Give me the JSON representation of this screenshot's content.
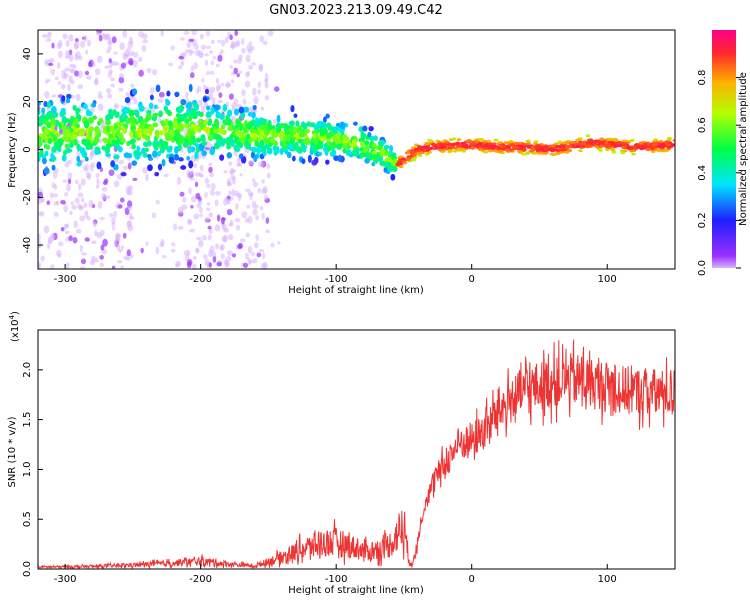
{
  "title": "GN03.2023.213.09.49.C42",
  "chart_data": [
    {
      "type": "heatmap",
      "xlabel": "Height of straight line (km)",
      "ylabel": "Frequency (Hz)",
      "xlim": [
        -320,
        150
      ],
      "ylim": [
        -50,
        50
      ],
      "xticks": [
        -300,
        -200,
        -100,
        0,
        100
      ],
      "yticks": [
        -40,
        -20,
        0,
        20,
        40
      ],
      "ridge": {
        "x": [
          -290,
          -250,
          -200,
          -150,
          -110,
          -80,
          -65,
          -55,
          -50,
          -40,
          -30,
          -10,
          0,
          20,
          40,
          60,
          90,
          120,
          150
        ],
        "freq": [
          7,
          8,
          9,
          6,
          5,
          2,
          -2,
          -7,
          -4,
          0,
          1,
          2,
          2,
          1,
          1,
          0,
          3,
          1,
          2
        ]
      },
      "colorbar": {
        "label": "Normalized spectral amplitude",
        "ticks": [
          "0.0",
          "0.2",
          "0.4",
          "0.6",
          "0.8"
        ],
        "range": [
          0,
          1
        ]
      }
    },
    {
      "type": "line",
      "xlabel": "Height of straight line (km)",
      "ylabel": "SNR (10 * v/v)",
      "multiplier": "(x10",
      "multiplier_exp": "4",
      "multiplier_close": ")",
      "xlim": [
        -320,
        150
      ],
      "ylim": [
        0,
        24000
      ],
      "xticks": [
        -300,
        -200,
        -100,
        0,
        100
      ],
      "yticks": [
        "0.0",
        "0.5",
        "1.0",
        "1.5",
        "2.0"
      ],
      "ytick_values": [
        0,
        5000,
        10000,
        15000,
        20000
      ],
      "color": "#ee3333",
      "series": [
        {
          "x": [
            -320,
            -280,
            -250,
            -220,
            -200,
            -180,
            -160,
            -140,
            -125,
            -110,
            -100,
            -90,
            -80,
            -70,
            -60,
            -50,
            -48,
            -46,
            -42,
            -40,
            -35,
            -30,
            -25,
            -20,
            -10,
            0,
            10,
            20,
            30,
            40,
            50,
            60,
            70,
            80,
            90,
            100,
            110,
            120,
            130,
            140,
            150
          ],
          "y": [
            200,
            250,
            400,
            600,
            800,
            500,
            300,
            1200,
            2000,
            2600,
            2700,
            2300,
            1800,
            1800,
            2500,
            4500,
            2500,
            600,
            800,
            3000,
            6500,
            8000,
            9500,
            10500,
            12500,
            13000,
            14000,
            16000,
            17000,
            18000,
            18300,
            18700,
            19000,
            19000,
            18600,
            18300,
            18000,
            17800,
            17800,
            17600,
            17800
          ]
        }
      ]
    }
  ]
}
